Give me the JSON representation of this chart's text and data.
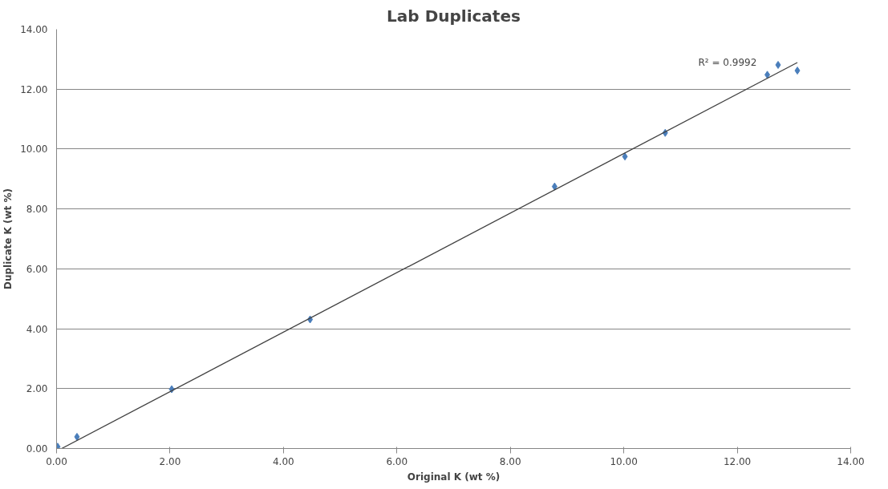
{
  "chart_data": {
    "type": "scatter",
    "title": "Lab Duplicates",
    "xlabel": "Original K (wt %)",
    "ylabel": "Duplicate K (wt %)",
    "series": [
      {
        "color": "#4a7ebb",
        "marker": "diamond",
        "x": [
          0.02,
          0.36,
          2.03,
          4.47,
          8.78,
          10.02,
          10.73,
          12.53,
          12.72,
          13.06
        ],
        "values": [
          0.06,
          0.39,
          1.98,
          4.31,
          8.75,
          9.75,
          10.54,
          12.48,
          12.81,
          12.62
        ]
      },
      {
        "type": "line",
        "color": "#404040",
        "line_style": "solid",
        "x": [
          0.09,
          13.06
        ],
        "values": [
          0.0,
          12.89
        ]
      }
    ],
    "annotations": [
      "R² = 0.9992"
    ],
    "xlim": [
      0,
      14
    ],
    "ylim": [
      0,
      14
    ],
    "xticks": [
      {
        "value": 0,
        "label": "0.00"
      },
      {
        "value": 2,
        "label": "2.00"
      },
      {
        "value": 4,
        "label": "4.00"
      },
      {
        "value": 6,
        "label": "6.00"
      },
      {
        "value": 8,
        "label": "8.00"
      },
      {
        "value": 10,
        "label": "10.00"
      },
      {
        "value": 12,
        "label": "12.00"
      },
      {
        "value": 14,
        "label": "14.00"
      }
    ],
    "yticks": [
      {
        "value": 0,
        "label": "0.00"
      },
      {
        "value": 2,
        "label": "2.00"
      },
      {
        "value": 4,
        "label": "4.00"
      },
      {
        "value": 6,
        "label": "6.00"
      },
      {
        "value": 8,
        "label": "8.00"
      },
      {
        "value": 10,
        "label": "10.00"
      },
      {
        "value": 12,
        "label": "12.00"
      },
      {
        "value": 14,
        "label": "14.00"
      }
    ],
    "grid": "y"
  }
}
